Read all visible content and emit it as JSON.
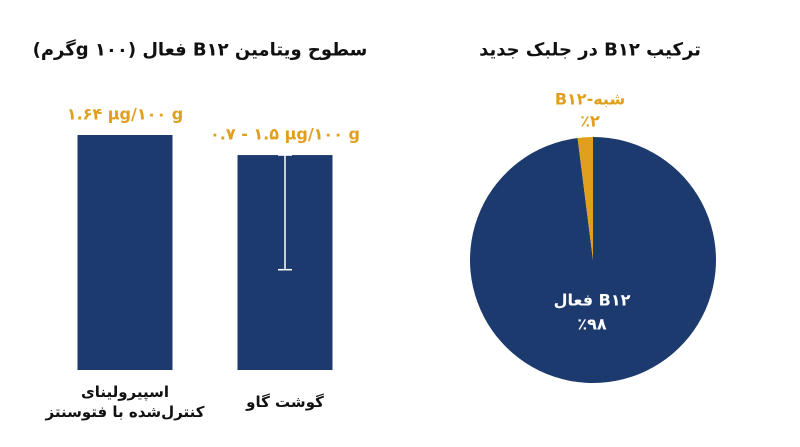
{
  "chart_data": [
    {
      "type": "bar",
      "title": "سطوح ویتامین B۱۲ فعال (g ۱۰۰گرم)",
      "categories": [
        "اسپیرولینای کنترل‌شده با فتوسنتز",
        "گوشت گاو"
      ],
      "values": [
        1.64,
        1.5
      ],
      "error_low": [
        null,
        0.7
      ],
      "value_labels": [
        "۱.۶۴ μg/۱۰۰ g",
        "۰.۷ - ۱.۵ μg/۱۰۰ g"
      ],
      "color": "#1c3a6e",
      "label_color": "#e0a01e",
      "ylim": [
        0,
        1.64
      ]
    },
    {
      "type": "pie",
      "title": "ترکیب B۱۲ در جلبک جدید",
      "categories": [
        "B۱۲ فعال",
        "شبه-B۱۲"
      ],
      "values": [
        98,
        2
      ],
      "value_labels": [
        "٪۹۸",
        "٪۲"
      ],
      "colors": [
        "#1c3a6e",
        "#e0a01e"
      ]
    }
  ]
}
